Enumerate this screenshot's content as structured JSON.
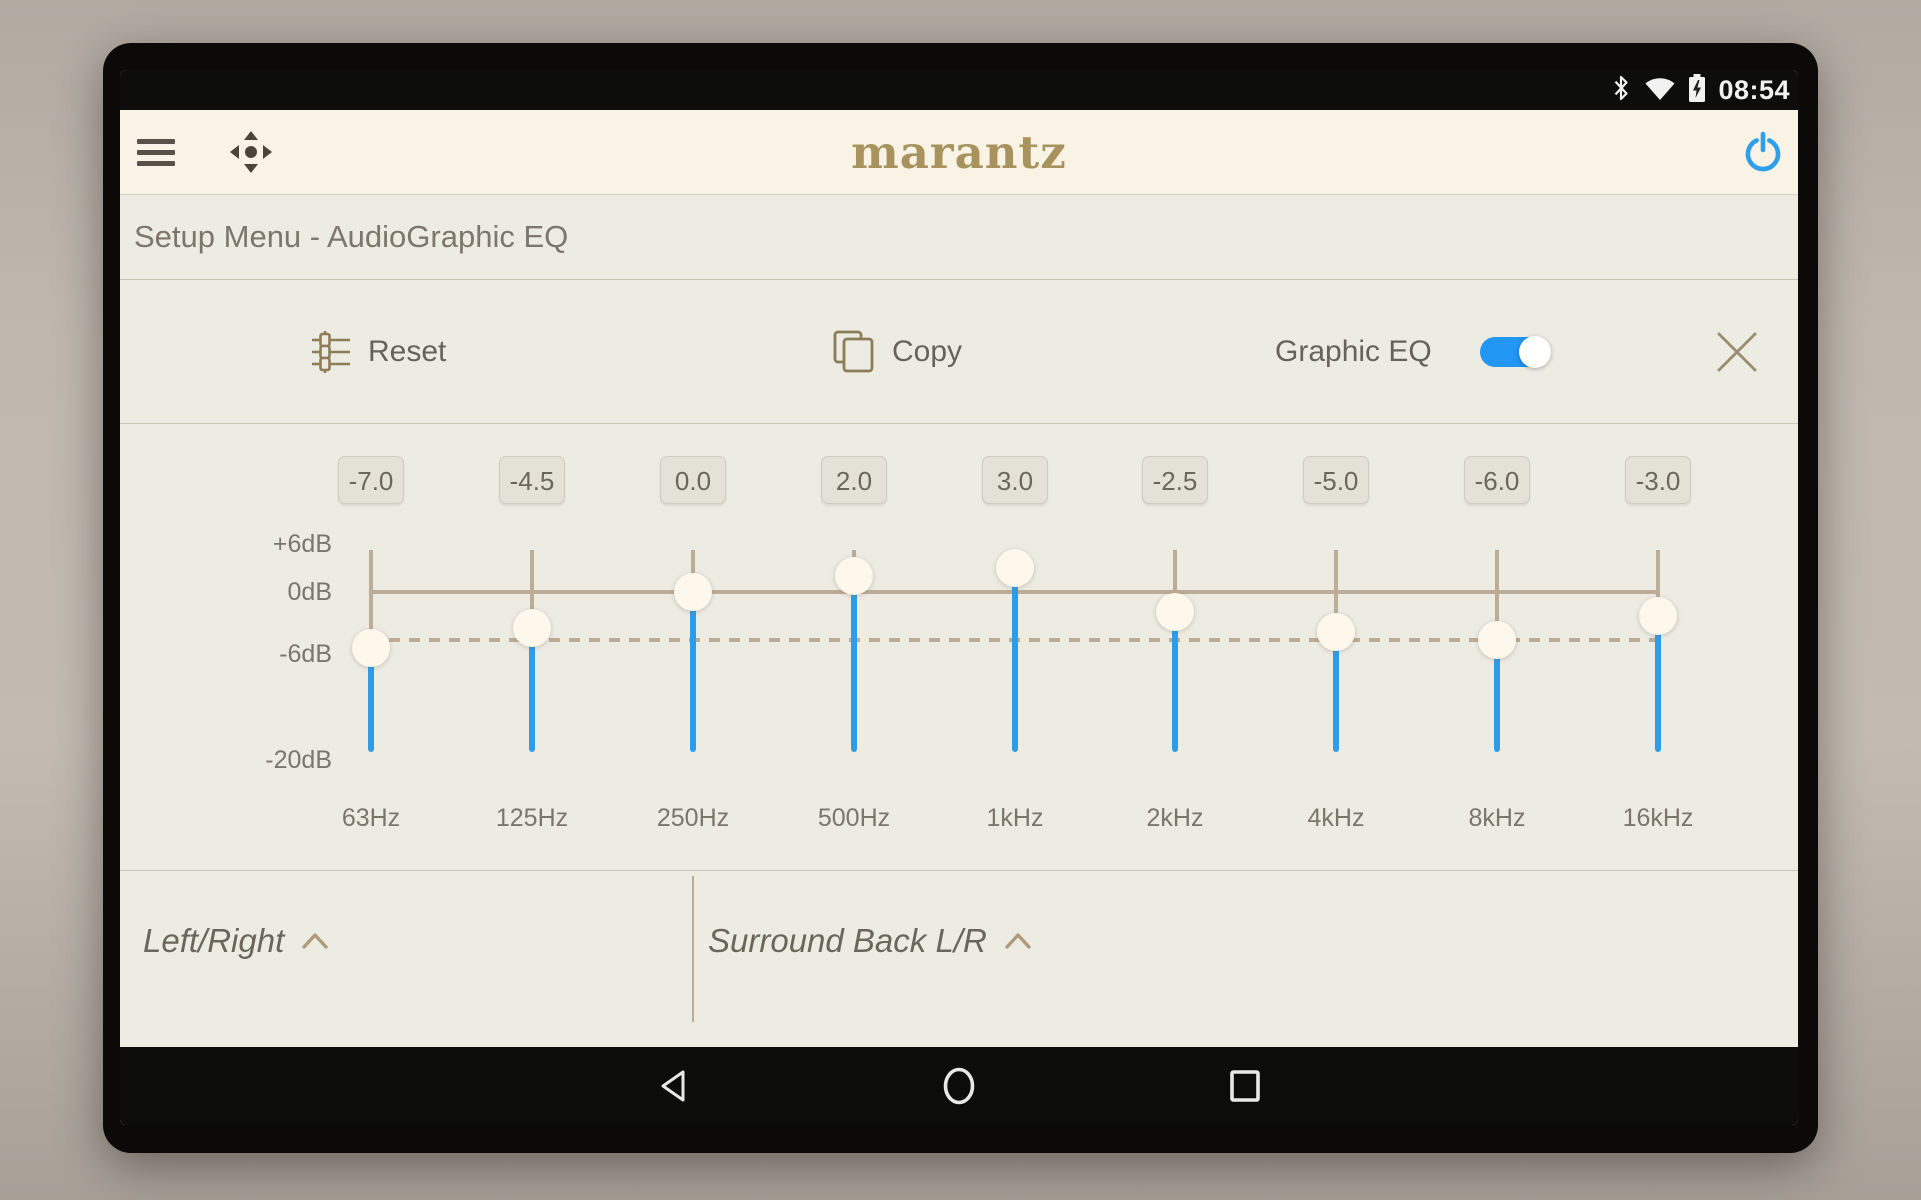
{
  "status_bar": {
    "time": "08:54",
    "icons": [
      "bluetooth-icon",
      "wifi-icon",
      "battery-charging-icon"
    ]
  },
  "header": {
    "logo_text": "marantz"
  },
  "title_bar": {
    "title": "Setup Menu - AudioGraphic EQ"
  },
  "toolbar": {
    "reset_label": "Reset",
    "copy_label": "Copy",
    "graphic_eq_label": "Graphic EQ",
    "graphic_eq_enabled": true
  },
  "eq": {
    "type": "vertical-slider-bank",
    "axis_ticks": [
      {
        "label": "+6dB",
        "db": 6
      },
      {
        "label": "0dB",
        "db": 0
      },
      {
        "label": "-6dB",
        "db": -6
      },
      {
        "label": "-20dB",
        "db": -20
      }
    ],
    "bands": [
      {
        "freq": "63Hz",
        "gain_db": -7.0,
        "display": "-7.0"
      },
      {
        "freq": "125Hz",
        "gain_db": -4.5,
        "display": "-4.5"
      },
      {
        "freq": "250Hz",
        "gain_db": 0.0,
        "display": "0.0"
      },
      {
        "freq": "500Hz",
        "gain_db": 2.0,
        "display": "2.0"
      },
      {
        "freq": "1kHz",
        "gain_db": 3.0,
        "display": "3.0"
      },
      {
        "freq": "2kHz",
        "gain_db": -2.5,
        "display": "-2.5"
      },
      {
        "freq": "4kHz",
        "gain_db": -5.0,
        "display": "-5.0"
      },
      {
        "freq": "8kHz",
        "gain_db": -6.0,
        "display": "-6.0"
      },
      {
        "freq": "16kHz",
        "gain_db": -3.0,
        "display": "-3.0"
      }
    ],
    "zero_line_db": 0,
    "dotted_line_db": -6
  },
  "channel_tabs": [
    {
      "label": "Left/Right"
    },
    {
      "label": "Surround Back L/R"
    }
  ],
  "nav_bar": {
    "icons": [
      "back-icon",
      "home-icon",
      "recent-apps-icon"
    ]
  },
  "colors": {
    "slider_blue": "#2d9de9",
    "toggle_blue": "#2196f3",
    "power_blue": "#2e9fe8",
    "logo_gold": "#a8935f",
    "line_tan": "#bdac96",
    "header_cream": "#f9f3e6",
    "content_bg": "#edece3",
    "knob_cream": "#fdf8eb"
  }
}
